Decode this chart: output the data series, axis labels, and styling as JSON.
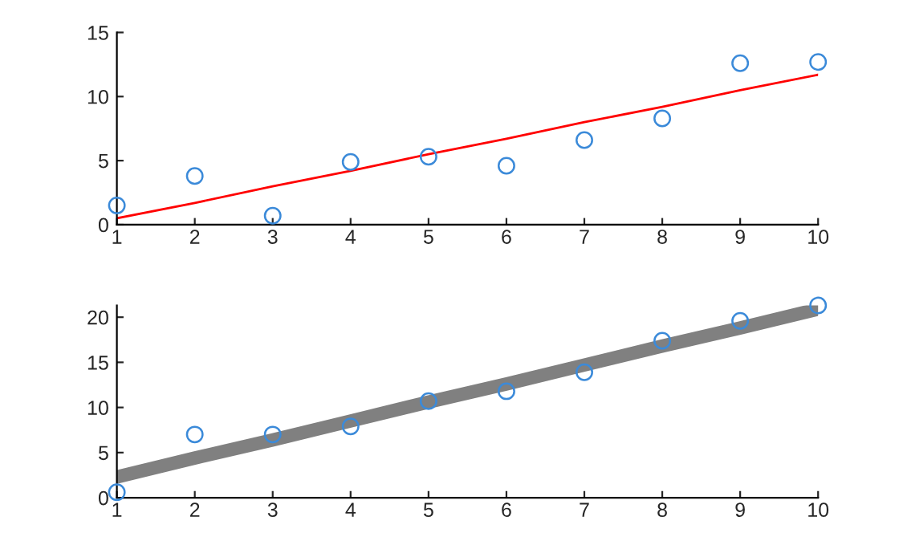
{
  "chart_data": [
    {
      "type": "scatter",
      "x": [
        1,
        2,
        3,
        4,
        5,
        6,
        7,
        8,
        9,
        10
      ],
      "xlim": [
        1,
        10
      ],
      "xticks": [
        1,
        2,
        3,
        4,
        5,
        6,
        7,
        8,
        9,
        10
      ],
      "ylim": [
        0,
        15
      ],
      "yticks": [
        0,
        5,
        10,
        15
      ],
      "series": [
        {
          "color": "#3b8ad9",
          "marker": "circle",
          "values": [
            1.5,
            3.8,
            0.7,
            4.9,
            5.3,
            4.6,
            6.6,
            8.3,
            12.6,
            12.7
          ]
        },
        {
          "type": "line",
          "color": "#ff0000",
          "marker": "none",
          "values": [
            0.5,
            1.7,
            3.0,
            4.2,
            5.5,
            6.7,
            8.0,
            9.2,
            10.5,
            11.7
          ]
        }
      ]
    },
    {
      "type": "scatter",
      "x": [
        1,
        2,
        3,
        4,
        5,
        6,
        7,
        8,
        9,
        10
      ],
      "xlim": [
        1,
        10
      ],
      "xticks": [
        1,
        2,
        3,
        4,
        5,
        6,
        7,
        8,
        9,
        10
      ],
      "ylim": [
        0,
        21.3
      ],
      "yticks": [
        0,
        5,
        10,
        15,
        20
      ],
      "series": [
        {
          "color": "#3b8ad9",
          "marker": "circle",
          "values": [
            0.6,
            7.0,
            7.0,
            7.9,
            10.7,
            11.8,
            13.9,
            17.4,
            19.6,
            21.3
          ]
        },
        {
          "type": "line",
          "color": "#808080",
          "marker": "none",
          "values": [
            2.3,
            4.4,
            6.4,
            8.5,
            10.6,
            12.6,
            14.7,
            16.8,
            18.8,
            20.9
          ]
        }
      ]
    }
  ]
}
